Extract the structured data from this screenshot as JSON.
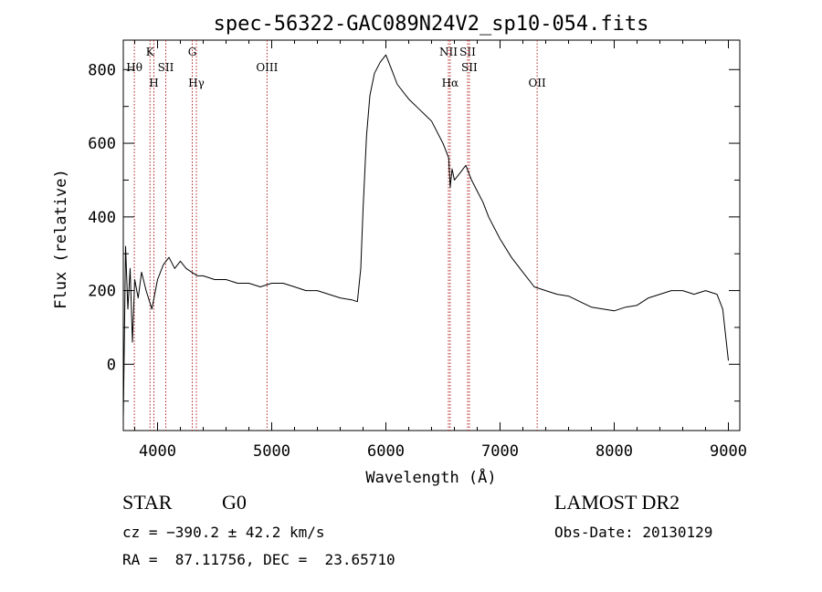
{
  "chart_data": {
    "type": "line",
    "title": "spec-56322-GAC089N24V2_sp10-054.fits",
    "xlabel": "Wavelength (Å)",
    "ylabel": "Flux (relative)",
    "xlim": [
      3700,
      9100
    ],
    "ylim": [
      -180,
      880
    ],
    "xticks": [
      4000,
      5000,
      6000,
      7000,
      8000,
      9000
    ],
    "xtick_labels": [
      "4000",
      "5000",
      "6000",
      "7000",
      "8000",
      "9000"
    ],
    "yticks": [
      0,
      200,
      400,
      600,
      800
    ],
    "ytick_labels": [
      "0",
      "200",
      "400",
      "600",
      "800"
    ],
    "grid": false,
    "series": [
      {
        "color": "#000000",
        "x": [
          3700,
          3720,
          3740,
          3760,
          3780,
          3800,
          3830,
          3860,
          3900,
          3950,
          4000,
          4050,
          4100,
          4150,
          4200,
          4250,
          4300,
          4350,
          4400,
          4500,
          4600,
          4700,
          4800,
          4900,
          5000,
          5100,
          5200,
          5300,
          5400,
          5500,
          5600,
          5700,
          5750,
          5780,
          5800,
          5830,
          5860,
          5900,
          5950,
          6000,
          6050,
          6100,
          6200,
          6300,
          6400,
          6500,
          6550,
          6563,
          6580,
          6600,
          6650,
          6700,
          6750,
          6800,
          6850,
          6900,
          7000,
          7100,
          7200,
          7300,
          7400,
          7500,
          7600,
          7700,
          7800,
          7900,
          8000,
          8100,
          8200,
          8300,
          8400,
          8500,
          8600,
          8700,
          8800,
          8900,
          8950,
          9000
        ],
        "y": [
          -150,
          320,
          150,
          260,
          60,
          230,
          180,
          250,
          200,
          150,
          230,
          270,
          290,
          260,
          280,
          260,
          250,
          240,
          240,
          230,
          230,
          220,
          220,
          210,
          220,
          220,
          210,
          200,
          200,
          190,
          180,
          175,
          170,
          260,
          420,
          620,
          730,
          790,
          820,
          840,
          800,
          760,
          720,
          690,
          660,
          600,
          560,
          480,
          530,
          500,
          520,
          540,
          500,
          470,
          440,
          400,
          340,
          290,
          250,
          210,
          200,
          190,
          185,
          170,
          155,
          150,
          145,
          155,
          160,
          180,
          190,
          200,
          200,
          190,
          200,
          190,
          150,
          10
        ]
      }
    ],
    "lines": [
      {
        "label": "Hθ",
        "x": 3797,
        "row": 2
      },
      {
        "label": "K",
        "x": 3934,
        "row": 1
      },
      {
        "label": "H",
        "x": 3968,
        "row": 3
      },
      {
        "label": "SII",
        "x": 4072,
        "row": 2
      },
      {
        "label": "G",
        "x": 4304,
        "row": 1
      },
      {
        "label": "Hγ",
        "x": 4340,
        "row": 3
      },
      {
        "label": "OIII",
        "x": 4959,
        "row": 2
      },
      {
        "label": "NII",
        "x": 6548,
        "row": 1
      },
      {
        "label": "Hα",
        "x": 6563,
        "row": 3
      },
      {
        "label": "SII",
        "x": 6716,
        "row": 1
      },
      {
        "label": "SII",
        "x": 6731,
        "row": 2
      },
      {
        "label": "OII",
        "x": 7325,
        "row": 3
      }
    ],
    "line_color": "#b22222"
  },
  "footer": {
    "object_type": "STAR",
    "subclass": "G0",
    "survey": "LAMOST DR2",
    "cz": "cz = −390.2 ± 42.2 km/s",
    "obs_date": "Obs-Date: 20130129",
    "coords": "RA =  87.11756, DEC =  23.65710"
  }
}
